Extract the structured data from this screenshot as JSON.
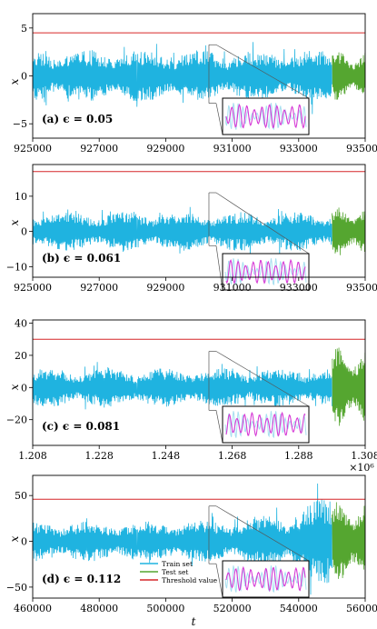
{
  "colors": {
    "train": "#1fb3e0",
    "test": "#55a630",
    "threshold": "#d62728",
    "inset": "#d63bd6",
    "inset_bg": "#a8dff0"
  },
  "xlabel": "t",
  "ylabel": "x",
  "legend": {
    "train": "Train set",
    "test": "Test set",
    "threshold": "Threshold value"
  },
  "chart_data": [
    {
      "type": "line",
      "label": "(a) ϵ = 0.05",
      "xlim": [
        925000,
        935000
      ],
      "ylim": [
        -6.5,
        6.5
      ],
      "xticks": [
        925000,
        927000,
        929000,
        931000,
        933000,
        935000
      ],
      "xtick_labels": [
        "925000",
        "927000",
        "929000",
        "931000",
        "933000",
        "935000"
      ],
      "yticks": [
        5,
        0,
        -5
      ],
      "ytick_labels": [
        "5",
        "0",
        "−5"
      ],
      "threshold": 4.5,
      "train_range": [
        925000,
        934000
      ],
      "test_range": [
        934000,
        935000
      ],
      "train_amplitude": 2.7,
      "test_amplitude": 2.6,
      "scale_text": ""
    },
    {
      "type": "line",
      "label": "(b) ϵ = 0.061",
      "xlim": [
        925000,
        935000
      ],
      "ylim": [
        -13,
        19
      ],
      "xticks": [
        925000,
        927000,
        929000,
        931000,
        933000,
        935000
      ],
      "xtick_labels": [
        "925000",
        "927000",
        "929000",
        "931000",
        "933000",
        "935000"
      ],
      "yticks": [
        10,
        0,
        -10
      ],
      "ytick_labels": [
        "10",
        "0",
        "−10"
      ],
      "threshold": 17,
      "train_range": [
        925000,
        934000
      ],
      "test_range": [
        934000,
        935000
      ],
      "train_amplitude": 5.5,
      "test_amplitude": 7,
      "scale_text": ""
    },
    {
      "type": "line",
      "label": "(c) ϵ = 0.081",
      "xlim": [
        1.208,
        1.308
      ],
      "ylim": [
        -36,
        42
      ],
      "xticks": [
        1.208,
        1.228,
        1.248,
        1.268,
        1.288,
        1.308
      ],
      "xtick_labels": [
        "1.208",
        "1.228",
        "1.248",
        "1.268",
        "1.288",
        "1.308"
      ],
      "yticks": [
        40,
        20,
        0,
        -20
      ],
      "ytick_labels": [
        "40",
        "20",
        "0",
        "−20"
      ],
      "threshold": 30,
      "train_range": [
        1.208,
        1.298
      ],
      "test_range": [
        1.298,
        1.308
      ],
      "train_amplitude": 12,
      "test_amplitude": 25,
      "scale_text": "×10⁶"
    },
    {
      "type": "line",
      "label": "(d) ϵ = 0.112",
      "xlim": [
        460000,
        560000
      ],
      "ylim": [
        -62,
        72
      ],
      "xticks": [
        460000,
        480000,
        500000,
        520000,
        540000,
        560000
      ],
      "xtick_labels": [
        "460000",
        "480000",
        "500000",
        "520000",
        "540000",
        "560000"
      ],
      "yticks": [
        50,
        0,
        -50
      ],
      "ytick_labels": [
        "50",
        "0",
        "−50"
      ],
      "threshold": 46,
      "train_range": [
        460000,
        550000
      ],
      "test_range": [
        550000,
        560000
      ],
      "train_amplitude": 22,
      "test_amplitude": 45,
      "scale_text": ""
    }
  ]
}
